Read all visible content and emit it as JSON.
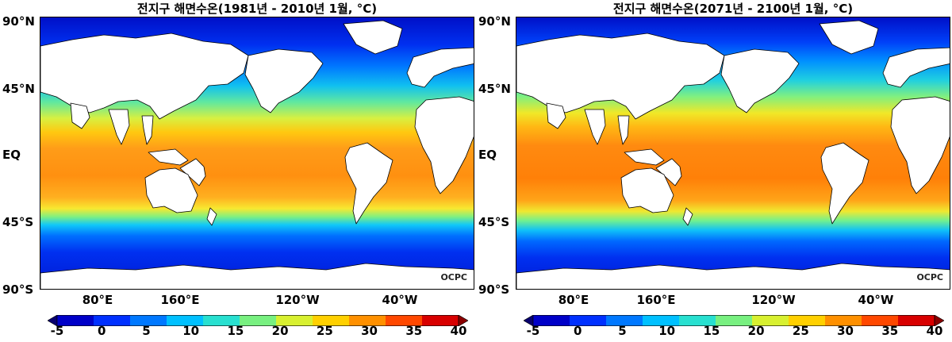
{
  "panels": [
    {
      "title": "전지구 해면수온(1981년 - 2010년 1월, °C)",
      "credit": "OCPC"
    },
    {
      "title": "전지구 해면수온(2071년 - 2100년 1월, °C)",
      "credit": "OCPC"
    }
  ],
  "lat_labels": [
    "90°N",
    "45°N",
    "EQ",
    "45°S",
    "90°S"
  ],
  "lon_labels": [
    "80°E",
    "160°E",
    "120°W",
    "40°W"
  ],
  "colorbar": {
    "ticks": [
      "-5",
      "0",
      "5",
      "10",
      "15",
      "20",
      "25",
      "30",
      "35",
      "40"
    ],
    "colors": [
      "#08006e",
      "#0000c8",
      "#0030ff",
      "#0078ff",
      "#00c0ff",
      "#28e0d0",
      "#78f080",
      "#d8f030",
      "#ffd000",
      "#ff9000",
      "#ff4800",
      "#d80000",
      "#8a0000"
    ],
    "range": [
      -5,
      40
    ],
    "extend": "both"
  },
  "colors": {
    "land": "#ffffff",
    "coast": "#000000",
    "ocean_polar": "#0016d8",
    "ocean_subpolar": "#0088ff",
    "ocean_mid": "#30e0c8",
    "ocean_warm": "#ffd000",
    "ocean_tropical": "#ff9a10"
  }
}
